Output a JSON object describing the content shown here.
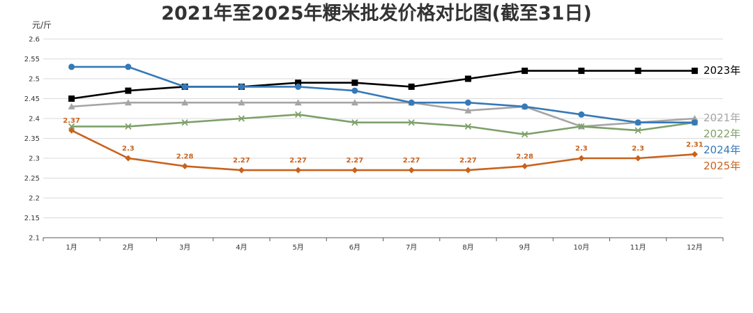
{
  "chart_data": {
    "type": "line",
    "title": "2021年至2025年粳米批发价格对比图(截至31日)",
    "ylabel": "元/斤",
    "xlabel": "",
    "ylim": [
      2.1,
      2.6
    ],
    "yticks": [
      "2.1",
      "2.15",
      "2.2",
      "2.25",
      "2.3",
      "2.35",
      "2.4",
      "2.45",
      "2.5",
      "2.55",
      "2.6"
    ],
    "categories": [
      "1月",
      "2月",
      "3月",
      "4月",
      "5月",
      "6月",
      "7月",
      "8月",
      "9月",
      "10月",
      "11月",
      "12月"
    ],
    "grid": "horizontal",
    "legend": "right, labels at line ends",
    "series": [
      {
        "name": "2023年",
        "color": "#000000",
        "marker": "square",
        "values": [
          2.45,
          2.47,
          2.48,
          2.48,
          2.49,
          2.49,
          2.48,
          2.5,
          2.52,
          2.52,
          2.52,
          2.52
        ]
      },
      {
        "name": "2021年",
        "color": "#a5a5a5",
        "marker": "triangle",
        "values": [
          2.43,
          2.44,
          2.44,
          2.44,
          2.44,
          2.44,
          2.44,
          2.42,
          2.43,
          2.38,
          2.39,
          2.4
        ]
      },
      {
        "name": "2022年",
        "color": "#7da06a",
        "marker": "x",
        "values": [
          2.38,
          2.38,
          2.39,
          2.4,
          2.41,
          2.39,
          2.39,
          2.38,
          2.36,
          2.38,
          2.37,
          2.39
        ]
      },
      {
        "name": "2024年",
        "color": "#3579b8",
        "marker": "circle",
        "values": [
          2.53,
          2.53,
          2.48,
          2.48,
          2.48,
          2.47,
          2.44,
          2.44,
          2.43,
          2.41,
          2.39,
          2.39
        ]
      },
      {
        "name": "2025年",
        "color": "#c8621c",
        "marker": "diamond",
        "show_values": true,
        "values": [
          2.37,
          2.3,
          2.28,
          2.27,
          2.27,
          2.27,
          2.27,
          2.27,
          2.28,
          2.3,
          2.3,
          2.31
        ],
        "value_labels": [
          "2.37",
          "2.3",
          "2.28",
          "2.27",
          "2.27",
          "2.27",
          "2.27",
          "2.27",
          "2.28",
          "2.3",
          "2.3",
          "2.31"
        ]
      }
    ]
  }
}
